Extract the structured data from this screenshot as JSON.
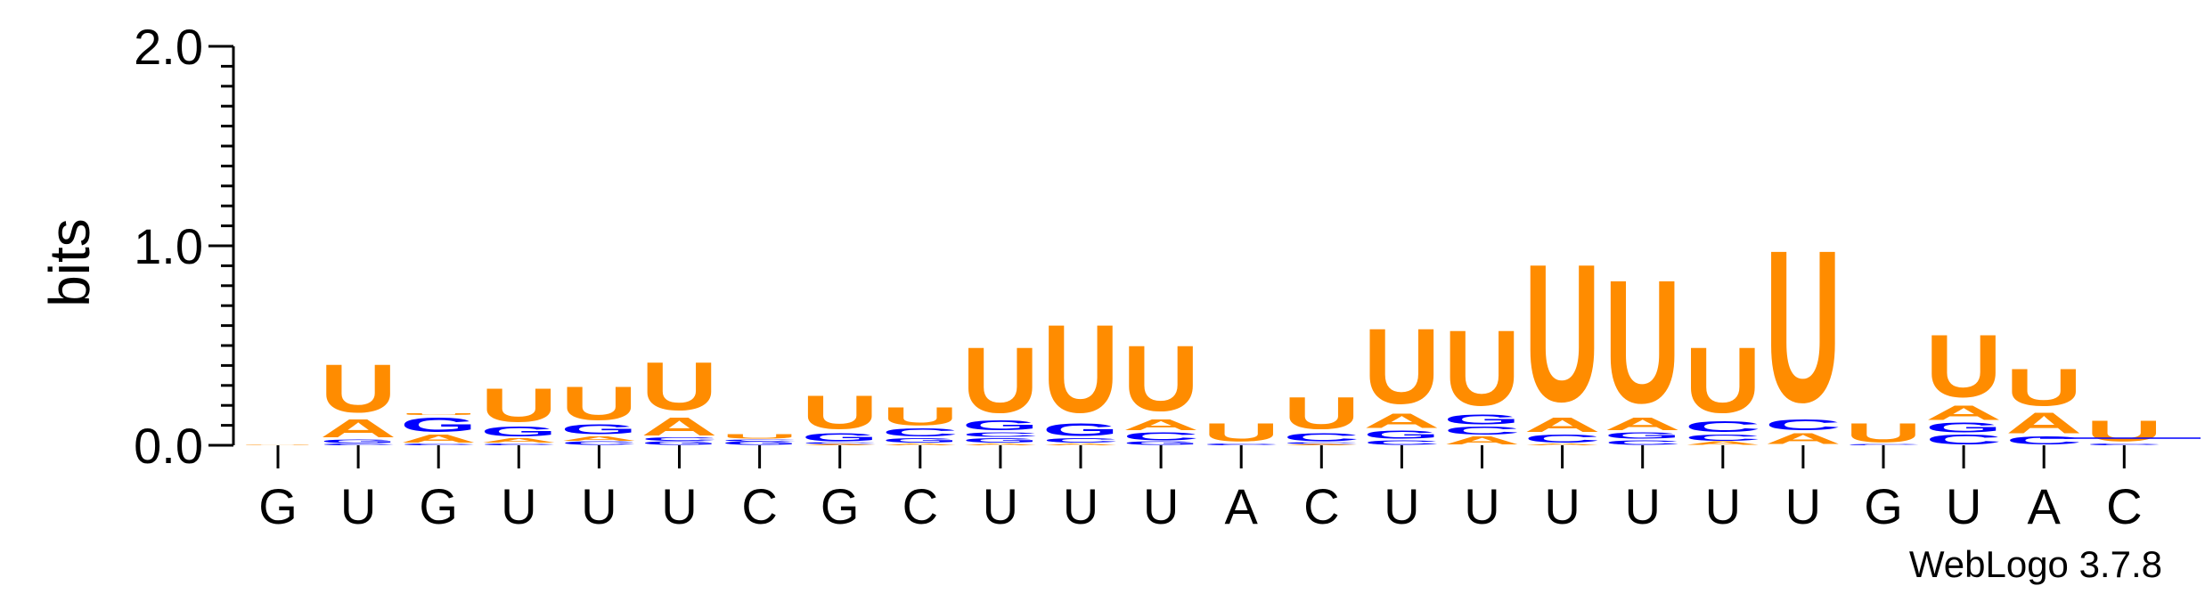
{
  "chart_data": {
    "type": "sequence-logo",
    "ylabel": "bits",
    "ylim": [
      0,
      2.0
    ],
    "yticks": [
      {
        "value": 0.0,
        "label": "0.0"
      },
      {
        "value": 1.0,
        "label": "1.0"
      },
      {
        "value": 2.0,
        "label": "2.0"
      }
    ],
    "xlabels": [
      "G",
      "U",
      "G",
      "U",
      "U",
      "U",
      "C",
      "G",
      "C",
      "U",
      "U",
      "U",
      "A",
      "C",
      "U",
      "U",
      "U",
      "U",
      "U",
      "U",
      "G",
      "U",
      "A",
      "C"
    ],
    "colors": {
      "U": "#ff8c00",
      "A": "#ff8c00",
      "G": "#0000ff",
      "C": "#0000ff"
    },
    "positions": [
      {
        "stack": [
          [
            "U",
            0.003
          ]
        ]
      },
      {
        "stack": [
          [
            "C",
            0.01
          ],
          [
            "G",
            0.02
          ],
          [
            "A",
            0.11
          ],
          [
            "U",
            0.3
          ]
        ]
      },
      {
        "stack": [
          [
            "C",
            0.01
          ],
          [
            "A",
            0.05
          ],
          [
            "G",
            0.09
          ],
          [
            "U",
            0.01
          ]
        ]
      },
      {
        "stack": [
          [
            "C",
            0.01
          ],
          [
            "A",
            0.03
          ],
          [
            "G",
            0.06
          ],
          [
            "U",
            0.21
          ]
        ]
      },
      {
        "stack": [
          [
            "C",
            0.02
          ],
          [
            "A",
            0.03
          ],
          [
            "G",
            0.06
          ],
          [
            "U",
            0.21
          ]
        ]
      },
      {
        "stack": [
          [
            "G",
            0.02
          ],
          [
            "C",
            0.02
          ],
          [
            "A",
            0.11
          ],
          [
            "U",
            0.3
          ]
        ]
      },
      {
        "stack": [
          [
            "G",
            0.02
          ],
          [
            "C",
            0.01
          ],
          [
            "U",
            0.03
          ]
        ]
      },
      {
        "stack": [
          [
            "A",
            0.005
          ],
          [
            "C",
            0.01
          ],
          [
            "G",
            0.05
          ],
          [
            "U",
            0.21
          ]
        ]
      },
      {
        "stack": [
          [
            "A",
            0.01
          ],
          [
            "G",
            0.03
          ],
          [
            "C",
            0.05
          ],
          [
            "U",
            0.11
          ]
        ]
      },
      {
        "stack": [
          [
            "A",
            0.01
          ],
          [
            "G",
            0.03
          ],
          [
            "C",
            0.03
          ],
          [
            "G",
            0.06
          ],
          [
            "U",
            0.41
          ]
        ]
      },
      {
        "stack": [
          [
            "A",
            0.01
          ],
          [
            "C",
            0.03
          ],
          [
            "G",
            0.08
          ],
          [
            "U",
            0.55
          ]
        ]
      },
      {
        "stack": [
          [
            "G",
            0.02
          ],
          [
            "C",
            0.05
          ],
          [
            "A",
            0.07
          ],
          [
            "U",
            0.41
          ]
        ]
      },
      {
        "stack": [
          [
            "C",
            0.01
          ],
          [
            "U",
            0.11
          ]
        ]
      },
      {
        "stack": [
          [
            "A",
            0.005
          ],
          [
            "C",
            0.01
          ],
          [
            "C",
            0.05
          ],
          [
            "U",
            0.2
          ]
        ]
      },
      {
        "stack": [
          [
            "C",
            0.03
          ],
          [
            "G",
            0.05
          ],
          [
            "A",
            0.09
          ],
          [
            "U",
            0.47
          ]
        ]
      },
      {
        "stack": [
          [
            "A",
            0.05
          ],
          [
            "C",
            0.05
          ],
          [
            "G",
            0.06
          ],
          [
            "U",
            0.47
          ]
        ]
      },
      {
        "stack": [
          [
            "A",
            0.01
          ],
          [
            "C",
            0.05
          ],
          [
            "A",
            0.09
          ],
          [
            "U",
            0.86
          ]
        ]
      },
      {
        "stack": [
          [
            "C",
            0.03
          ],
          [
            "G",
            0.04
          ],
          [
            "A",
            0.08
          ],
          [
            "U",
            0.77
          ]
        ]
      },
      {
        "stack": [
          [
            "A",
            0.02
          ],
          [
            "C",
            0.04
          ],
          [
            "C",
            0.07
          ],
          [
            "U",
            0.41
          ]
        ]
      },
      {
        "stack": [
          [
            "A",
            0.07
          ],
          [
            "C",
            0.07
          ],
          [
            "U",
            0.95
          ]
        ]
      },
      {
        "stack": [
          [
            "C",
            0.005
          ],
          [
            "U",
            0.12
          ]
        ]
      },
      {
        "stack": [
          [
            "C",
            0.06
          ],
          [
            "G",
            0.06
          ],
          [
            "A",
            0.09
          ],
          [
            "U",
            0.39
          ]
        ]
      },
      {
        "stack": [
          [
            "C",
            0.05
          ],
          [
            "A",
            0.13
          ],
          [
            "U",
            0.23
          ]
        ]
      },
      {
        "stack": [
          [
            "C",
            0.01
          ],
          [
            "U",
            0.13
          ]
        ]
      }
    ]
  },
  "footer": {
    "credit": "WebLogo 3.7.8"
  }
}
